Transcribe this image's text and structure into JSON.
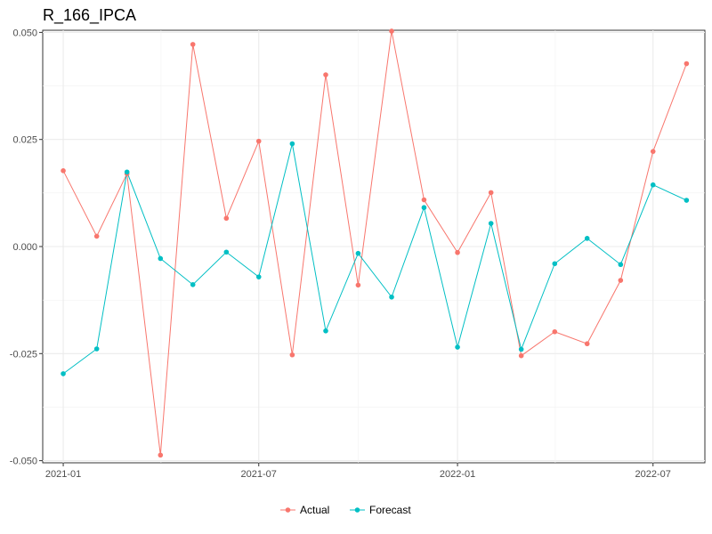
{
  "chart_data": {
    "type": "line",
    "title": "R_166_IPCA",
    "xlabel": "",
    "ylabel": "",
    "x_ticks": [
      "2021-01",
      "2021-07",
      "2022-01",
      "2022-07"
    ],
    "y_ticks": [
      "-0.050",
      "-0.025",
      "0.000",
      "0.025",
      "0.050"
    ],
    "ylim": [
      -0.0505,
      0.0505
    ],
    "xlim": [
      "2020-12-13",
      "2022-08-18"
    ],
    "grid": true,
    "legend_position": "bottom",
    "x": [
      "2021-01-01",
      "2021-02-01",
      "2021-03-01",
      "2021-04-01",
      "2021-05-01",
      "2021-06-01",
      "2021-07-01",
      "2021-08-01",
      "2021-09-01",
      "2021-10-01",
      "2021-11-01",
      "2021-12-01",
      "2022-01-01",
      "2022-02-01",
      "2022-03-01",
      "2022-04-01",
      "2022-05-01",
      "2022-06-01",
      "2022-07-01",
      "2022-08-01"
    ],
    "series": [
      {
        "name": "Actual",
        "color": "#F8766D",
        "values": [
          0.0177,
          0.0024,
          0.017,
          -0.0487,
          0.0472,
          0.0066,
          0.0246,
          -0.0253,
          0.0401,
          -0.009,
          0.0503,
          0.0109,
          -0.0014,
          0.0126,
          -0.0255,
          -0.0199,
          -0.0227,
          -0.0079,
          0.0222,
          0.0427
        ]
      },
      {
        "name": "Forecast",
        "color": "#00BFC4",
        "values": [
          -0.0297,
          -0.0239,
          0.0174,
          -0.0028,
          -0.0089,
          -0.0013,
          -0.0071,
          0.024,
          -0.0197,
          -0.0016,
          -0.0118,
          0.0091,
          -0.0235,
          0.0054,
          -0.024,
          -0.004,
          0.0019,
          -0.0042,
          0.0144,
          0.0108
        ]
      }
    ]
  }
}
